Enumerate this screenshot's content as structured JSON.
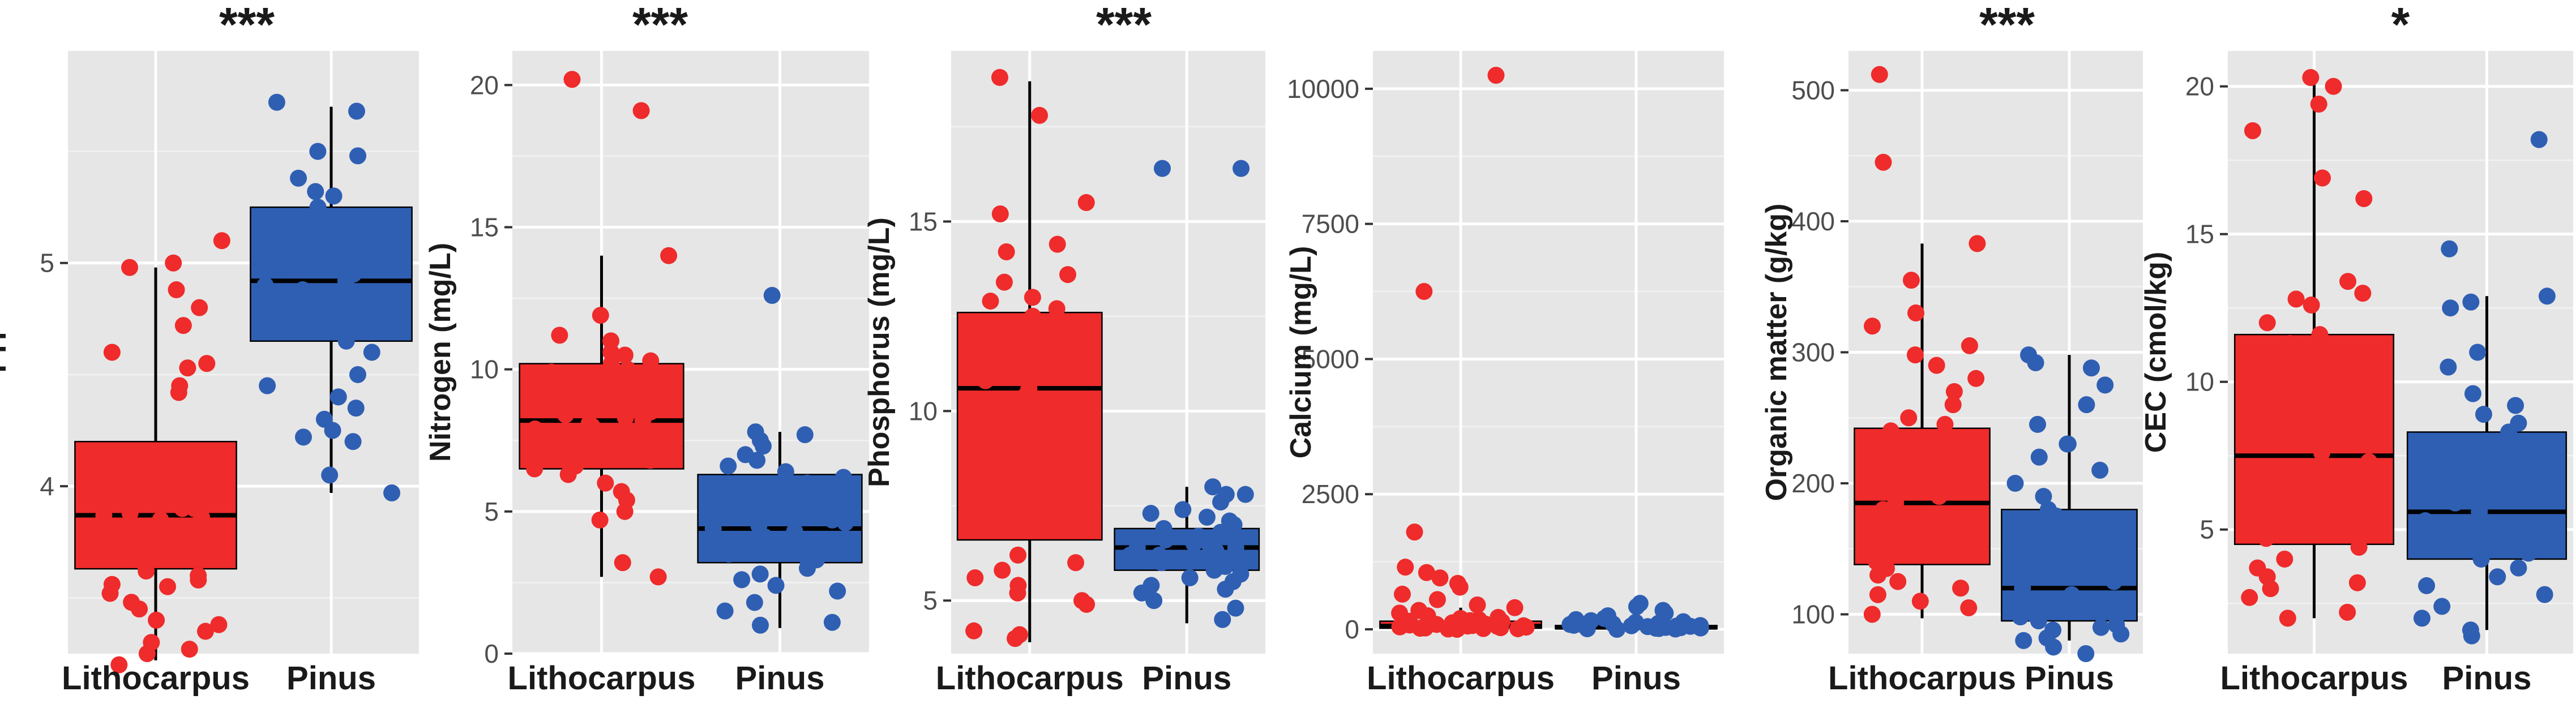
{
  "colors": {
    "Lithocarpus": "#ef2b2b",
    "Pinus": "#2f5fb3",
    "panel": "#e6e6e6"
  },
  "chart_data": [
    {
      "type": "box",
      "title": "***",
      "ylabel": "PH",
      "categories": [
        "Lithocarpus",
        "Pinus"
      ],
      "ylim": [
        3.25,
        5.95
      ],
      "yticks": [
        4,
        5
      ],
      "boxes": [
        {
          "name": "Lithocarpus",
          "min": 3.22,
          "q1": 3.63,
          "median": 3.87,
          "q3": 4.2,
          "max": 4.98
        },
        {
          "name": "Pinus",
          "min": 3.97,
          "q1": 4.65,
          "median": 4.92,
          "q3": 5.25,
          "max": 5.7
        }
      ],
      "points": [
        [
          4.88,
          4.98,
          5.0,
          5.1,
          4.45,
          4.42,
          4.6,
          4.55,
          4.72,
          4.8,
          4.53,
          4.07,
          4.05,
          4.12,
          4.0,
          3.97,
          3.92,
          3.9,
          3.95,
          3.86,
          3.87,
          3.82,
          3.8,
          3.78,
          3.76,
          3.74,
          3.7,
          3.68,
          3.65,
          3.62,
          3.58,
          3.56,
          3.52,
          3.48,
          3.45,
          3.4,
          3.38,
          3.3,
          3.27,
          3.2,
          3.25,
          3.35,
          3.6,
          3.88,
          3.85,
          3.83,
          3.9,
          4.0,
          3.55
        ],
        [
          5.72,
          5.68,
          5.5,
          5.48,
          5.38,
          5.32,
          5.25,
          5.2,
          5.15,
          5.1,
          5.05,
          5.0,
          4.97,
          4.95,
          4.9,
          4.88,
          4.85,
          4.83,
          4.8,
          4.78,
          4.75,
          4.72,
          4.7,
          4.65,
          4.5,
          4.45,
          4.4,
          4.3,
          4.25,
          4.2,
          4.22,
          4.05,
          3.97,
          4.98,
          5.3,
          5.0,
          4.92,
          4.86,
          5.08,
          5.18,
          4.82,
          4.6,
          4.35
        ]
      ]
    },
    {
      "type": "box",
      "title": "***",
      "ylabel": "Nitrogen (mg/L)",
      "categories": [
        "Lithocarpus",
        "Pinus"
      ],
      "ylim": [
        0,
        21.2
      ],
      "yticks": [
        0,
        5,
        10,
        15,
        20
      ],
      "boxes": [
        {
          "name": "Lithocarpus",
          "min": 2.7,
          "q1": 6.5,
          "median": 8.2,
          "q3": 10.2,
          "max": 14.0
        },
        {
          "name": "Pinus",
          "min": 0.9,
          "q1": 3.2,
          "median": 4.4,
          "q3": 6.3,
          "max": 7.8
        }
      ],
      "points": [
        [
          20.2,
          19.1,
          14.0,
          11.9,
          11.2,
          11.0,
          10.5,
          10.3,
          10.2,
          10.0,
          9.8,
          9.6,
          9.4,
          9.2,
          9.0,
          8.8,
          8.7,
          8.5,
          8.4,
          8.2,
          8.1,
          8.0,
          7.9,
          7.8,
          7.6,
          7.5,
          7.3,
          7.2,
          7.0,
          6.8,
          6.6,
          6.5,
          6.3,
          6.0,
          5.7,
          5.4,
          5.0,
          4.7,
          3.2,
          2.7,
          8.9,
          9.9,
          10.6,
          7.7,
          8.3
        ],
        [
          12.6,
          7.8,
          7.7,
          7.5,
          7.3,
          7.0,
          6.8,
          6.6,
          6.4,
          6.2,
          6.0,
          5.8,
          5.6,
          5.5,
          5.3,
          5.2,
          5.0,
          4.9,
          4.7,
          4.5,
          4.4,
          4.3,
          4.1,
          4.0,
          3.9,
          3.7,
          3.5,
          3.3,
          3.2,
          3.0,
          2.8,
          2.6,
          2.4,
          2.2,
          1.8,
          1.5,
          1.1,
          1.0,
          4.6,
          5.4
        ]
      ]
    },
    {
      "type": "box",
      "title": "***",
      "ylabel": "Phosphorus (mg/L)",
      "categories": [
        "Lithocarpus",
        "Pinus"
      ],
      "ylim": [
        3.6,
        19.5
      ],
      "yticks": [
        5,
        10,
        15
      ],
      "boxes": [
        {
          "name": "Lithocarpus",
          "min": 3.9,
          "q1": 6.6,
          "median": 10.6,
          "q3": 12.6,
          "max": 18.7
        },
        {
          "name": "Pinus",
          "min": 4.4,
          "q1": 5.8,
          "median": 6.4,
          "q3": 6.9,
          "max": 8.0
        }
      ],
      "points": [
        [
          18.8,
          17.8,
          15.5,
          15.2,
          14.4,
          14.2,
          13.6,
          13.4,
          13.0,
          12.7,
          12.5,
          12.2,
          12.0,
          11.7,
          11.4,
          11.2,
          11.0,
          10.8,
          10.6,
          10.4,
          10.2,
          10.0,
          9.8,
          9.6,
          9.3,
          9.0,
          8.8,
          8.6,
          8.2,
          7.8,
          7.4,
          7.0,
          6.2,
          6.0,
          5.8,
          5.6,
          5.4,
          5.2,
          5.0,
          4.9,
          4.2,
          4.1,
          4.0,
          12.9,
          11.1
        ],
        [
          16.4,
          16.4,
          8.0,
          7.8,
          7.6,
          7.4,
          7.2,
          7.0,
          6.9,
          6.8,
          6.7,
          6.6,
          6.5,
          6.4,
          6.4,
          6.3,
          6.2,
          6.1,
          6.0,
          5.9,
          5.8,
          5.7,
          5.6,
          5.5,
          5.4,
          5.2,
          5.0,
          4.8,
          4.5,
          6.2,
          6.6,
          7.1,
          5.9,
          6.3,
          6.5,
          7.3,
          7.8,
          5.3
        ]
      ]
    },
    {
      "type": "box",
      "title": "",
      "ylabel": "Calcium (mg/L)",
      "categories": [
        "Lithocarpus",
        "Pinus"
      ],
      "ylim": [
        -450,
        10700
      ],
      "yticks": [
        0,
        2500,
        5000,
        7500,
        10000
      ],
      "boxes": [
        {
          "name": "Lithocarpus",
          "min": 0,
          "q1": 20,
          "median": 60,
          "q3": 150,
          "max": 400
        },
        {
          "name": "Pinus",
          "min": 0,
          "q1": 10,
          "median": 35,
          "q3": 70,
          "max": 150
        }
      ],
      "points": [
        [
          10250,
          6250,
          1800,
          1150,
          1050,
          950,
          850,
          780,
          650,
          550,
          450,
          400,
          350,
          300,
          250,
          220,
          200,
          180,
          160,
          150,
          140,
          120,
          110,
          100,
          90,
          80,
          70,
          60,
          55,
          50,
          45,
          40,
          35,
          30,
          25,
          20,
          15,
          10,
          5,
          0,
          65,
          75,
          85,
          95
        ],
        [
          480,
          420,
          350,
          300,
          250,
          200,
          180,
          160,
          140,
          120,
          100,
          90,
          80,
          70,
          60,
          50,
          45,
          40,
          35,
          30,
          25,
          20,
          15,
          10,
          5,
          0,
          110,
          130,
          55,
          65,
          75,
          85
        ]
      ]
    },
    {
      "type": "box",
      "title": "***",
      "ylabel": "Organic matter (g/kg)",
      "categories": [
        "Lithocarpus",
        "Pinus"
      ],
      "ylim": [
        70,
        530
      ],
      "yticks": [
        100,
        200,
        300,
        400,
        500
      ],
      "boxes": [
        {
          "name": "Lithocarpus",
          "min": 97,
          "q1": 138,
          "median": 185,
          "q3": 242,
          "max": 383
        },
        {
          "name": "Pinus",
          "min": 80,
          "q1": 95,
          "median": 120,
          "q3": 180,
          "max": 298
        }
      ],
      "points": [
        [
          512,
          445,
          383,
          355,
          330,
          320,
          305,
          298,
          290,
          280,
          270,
          260,
          250,
          240,
          235,
          228,
          220,
          212,
          205,
          198,
          190,
          185,
          180,
          175,
          170,
          165,
          160,
          155,
          150,
          145,
          140,
          135,
          130,
          125,
          120,
          115,
          110,
          105,
          100,
          245,
          215,
          195,
          172
        ],
        [
          298,
          292,
          288,
          275,
          260,
          245,
          230,
          220,
          210,
          200,
          190,
          180,
          175,
          160,
          150,
          140,
          130,
          125,
          120,
          115,
          110,
          105,
          100,
          98,
          95,
          92,
          90,
          88,
          85,
          82,
          80,
          75,
          70,
          230,
          165
        ]
      ]
    },
    {
      "type": "box",
      "title": "*",
      "ylabel": "CEC (cmol/kg)",
      "categories": [
        "Lithocarpus",
        "Pinus"
      ],
      "ylim": [
        0.8,
        21.2
      ],
      "yticks": [
        5,
        10,
        15,
        20
      ],
      "boxes": [
        {
          "name": "Lithocarpus",
          "min": 2.0,
          "q1": 4.5,
          "median": 7.5,
          "q3": 11.6,
          "max": 20.3
        },
        {
          "name": "Pinus",
          "min": 1.6,
          "q1": 4.0,
          "median": 5.6,
          "q3": 8.3,
          "max": 12.9
        }
      ],
      "points": [
        [
          20.3,
          20.0,
          19.4,
          18.5,
          16.9,
          16.2,
          13.4,
          13.0,
          12.8,
          12.6,
          12.0,
          11.6,
          11.3,
          11.0,
          10.6,
          10.2,
          9.8,
          9.5,
          9.2,
          8.8,
          8.5,
          8.2,
          7.9,
          7.6,
          7.3,
          7.0,
          6.7,
          6.4,
          6.0,
          5.7,
          5.4,
          5.0,
          4.7,
          4.4,
          4.0,
          3.7,
          3.4,
          3.2,
          3.0,
          2.7,
          2.2,
          2.0
        ],
        [
          18.2,
          14.5,
          12.9,
          12.7,
          12.5,
          11.0,
          10.5,
          9.6,
          9.2,
          8.9,
          8.6,
          8.3,
          8.0,
          7.7,
          7.4,
          7.1,
          6.8,
          6.5,
          6.2,
          5.9,
          5.6,
          5.3,
          5.0,
          4.8,
          4.5,
          4.2,
          4.0,
          3.7,
          3.4,
          3.1,
          2.8,
          2.4,
          2.0,
          1.6,
          1.4,
          6.0,
          7.3
        ]
      ]
    }
  ]
}
